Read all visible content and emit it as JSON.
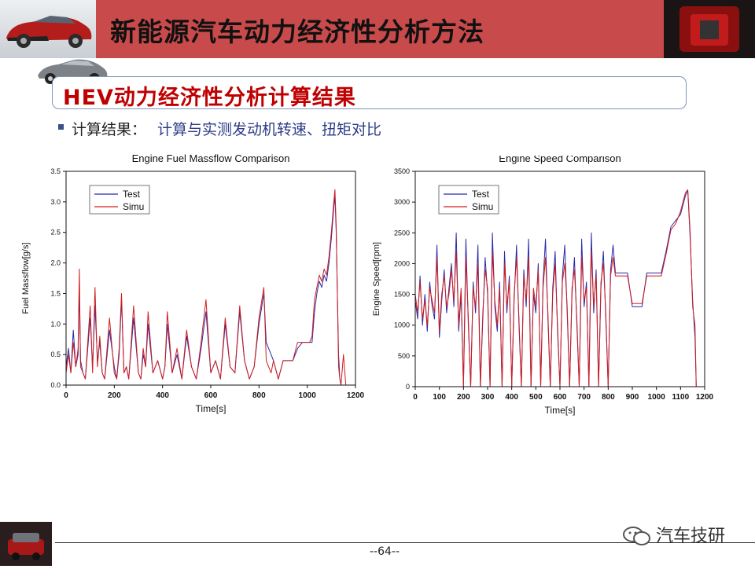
{
  "header": {
    "title": "新能源汽车动力经济性分析方法",
    "bg_color": "#c94a4a"
  },
  "subtitle": "HEV动力经济性分析计算结果",
  "bullet": {
    "label": "计算结果：",
    "text": "计算与实测发动机转速、扭矩对比"
  },
  "footer": {
    "page": "--64--",
    "watermark": "汽车技研"
  },
  "chart_data": [
    {
      "type": "line",
      "title": "Engine Fuel Massflow Comparison",
      "xlabel": "Time[s]",
      "ylabel": "Fuel Massflow[g/s]",
      "xlim": [
        0,
        1200
      ],
      "ylim": [
        0,
        3.5
      ],
      "x_ticks": [
        "0",
        "200",
        "400",
        "600",
        "800",
        "1000",
        "1200"
      ],
      "y_ticks": [
        "0.0",
        "0.5",
        "1.0",
        "1.5",
        "2.0",
        "2.5",
        "3.0",
        "3.5"
      ],
      "legend": "top-left",
      "series": [
        {
          "name": "Test",
          "color": "#2a2aa8",
          "x": [
            0,
            10,
            20,
            30,
            40,
            50,
            55,
            60,
            70,
            80,
            100,
            110,
            120,
            130,
            140,
            150,
            160,
            180,
            200,
            210,
            220,
            230,
            240,
            250,
            260,
            270,
            280,
            300,
            310,
            320,
            330,
            340,
            360,
            380,
            400,
            410,
            420,
            440,
            460,
            480,
            500,
            520,
            540,
            560,
            580,
            600,
            620,
            640,
            660,
            680,
            700,
            720,
            740,
            760,
            780,
            800,
            820,
            830,
            840,
            850,
            860,
            880,
            900,
            910,
            920,
            940,
            960,
            980,
            1000,
            1010,
            1020,
            1030,
            1040,
            1050,
            1060,
            1070,
            1080,
            1090,
            1100,
            1110,
            1115,
            1120,
            1130,
            1135,
            1140,
            1150,
            1160
          ],
          "values": [
            0.3,
            0.6,
            0.2,
            0.9,
            0.3,
            0.5,
            1.6,
            0.4,
            0.2,
            0.1,
            1.1,
            0.3,
            1.3,
            0.4,
            0.7,
            0.2,
            0.1,
            0.9,
            0.3,
            0.1,
            0.5,
            1.4,
            0.2,
            0.3,
            0.1,
            0.6,
            1.1,
            0.2,
            0.1,
            0.5,
            0.3,
            1.0,
            0.2,
            0.4,
            0.1,
            0.3,
            1.0,
            0.2,
            0.5,
            0.1,
            0.8,
            0.3,
            0.1,
            0.6,
            1.2,
            0.2,
            0.4,
            0.1,
            1.0,
            0.3,
            0.2,
            1.2,
            0.4,
            0.1,
            0.3,
            1.0,
            1.5,
            0.7,
            0.6,
            0.5,
            0.4,
            0.1,
            0.4,
            0.4,
            0.4,
            0.4,
            0.6,
            0.7,
            0.7,
            0.7,
            0.7,
            1.2,
            1.5,
            1.7,
            1.6,
            1.8,
            1.7,
            2.0,
            2.4,
            2.9,
            3.1,
            2.5,
            0.5,
            0.1,
            0.0,
            0.0,
            0.0
          ]
        },
        {
          "name": "Simu",
          "color": "#d11d1d",
          "x": [
            0,
            10,
            20,
            30,
            40,
            50,
            55,
            60,
            70,
            80,
            100,
            110,
            120,
            130,
            140,
            150,
            160,
            180,
            200,
            210,
            220,
            230,
            240,
            250,
            260,
            270,
            280,
            300,
            310,
            320,
            330,
            340,
            360,
            380,
            400,
            410,
            420,
            440,
            460,
            480,
            500,
            520,
            540,
            560,
            580,
            600,
            620,
            640,
            660,
            680,
            700,
            720,
            740,
            760,
            780,
            800,
            820,
            830,
            840,
            850,
            860,
            880,
            900,
            910,
            920,
            940,
            960,
            980,
            1000,
            1010,
            1020,
            1030,
            1040,
            1050,
            1060,
            1070,
            1080,
            1090,
            1100,
            1110,
            1115,
            1120,
            1130,
            1135,
            1140,
            1150,
            1160
          ],
          "values": [
            0.2,
            0.5,
            0.2,
            0.7,
            0.3,
            0.6,
            1.9,
            0.3,
            0.2,
            0.1,
            1.3,
            0.2,
            1.6,
            0.3,
            0.8,
            0.2,
            0.1,
            1.1,
            0.2,
            0.1,
            0.6,
            1.5,
            0.2,
            0.3,
            0.1,
            0.7,
            1.3,
            0.2,
            0.1,
            0.6,
            0.3,
            1.2,
            0.2,
            0.4,
            0.1,
            0.3,
            1.2,
            0.2,
            0.6,
            0.1,
            0.9,
            0.3,
            0.1,
            0.7,
            1.4,
            0.2,
            0.4,
            0.1,
            1.1,
            0.3,
            0.2,
            1.3,
            0.4,
            0.1,
            0.3,
            1.1,
            1.6,
            0.4,
            0.3,
            0.2,
            0.4,
            0.1,
            0.4,
            0.4,
            0.4,
            0.4,
            0.7,
            0.7,
            0.7,
            0.7,
            0.8,
            1.4,
            1.6,
            1.8,
            1.7,
            1.9,
            1.8,
            2.1,
            2.5,
            3.0,
            3.2,
            2.6,
            0.3,
            0.1,
            0.0,
            0.5,
            0.0
          ]
        }
      ]
    },
    {
      "type": "line",
      "title": "Engine Speed Comparison",
      "xlabel": "Time[s]",
      "ylabel": "Engine Speed[rpm]",
      "xlim": [
        0,
        1200
      ],
      "ylim": [
        0,
        3500
      ],
      "x_ticks": [
        "0",
        "100",
        "200",
        "300",
        "400",
        "500",
        "600",
        "700",
        "800",
        "900",
        "1000",
        "1100",
        "1200"
      ],
      "y_ticks": [
        "0",
        "500",
        "1000",
        "1500",
        "2000",
        "2500",
        "3000",
        "3500"
      ],
      "legend": "top-left",
      "series": [
        {
          "name": "Test",
          "color": "#2a2aa8",
          "x": [
            0,
            10,
            20,
            30,
            40,
            50,
            60,
            70,
            80,
            90,
            100,
            110,
            120,
            130,
            140,
            150,
            160,
            170,
            180,
            190,
            200,
            210,
            220,
            230,
            240,
            250,
            260,
            270,
            280,
            290,
            300,
            310,
            320,
            330,
            340,
            350,
            360,
            370,
            380,
            390,
            400,
            410,
            420,
            430,
            440,
            450,
            460,
            470,
            480,
            490,
            500,
            510,
            520,
            530,
            540,
            550,
            560,
            570,
            580,
            590,
            600,
            610,
            620,
            630,
            640,
            650,
            660,
            670,
            680,
            690,
            700,
            710,
            720,
            730,
            740,
            750,
            760,
            770,
            780,
            790,
            800,
            810,
            820,
            830,
            860,
            880,
            900,
            920,
            940,
            960,
            980,
            1000,
            1020,
            1040,
            1060,
            1080,
            1100,
            1120,
            1130,
            1140,
            1150,
            1160,
            1165
          ],
          "values": [
            1400,
            1100,
            1800,
            1000,
            1500,
            900,
            1700,
            1300,
            1100,
            2300,
            800,
            1400,
            1900,
            1200,
            1600,
            2000,
            1300,
            2500,
            900,
            1500,
            0,
            2400,
            1000,
            0,
            1700,
            1200,
            2300,
            0,
            1100,
            2100,
            1500,
            0,
            2500,
            1300,
            900,
            1700,
            0,
            2200,
            1200,
            1800,
            0,
            1400,
            2300,
            1000,
            0,
            1900,
            1300,
            2400,
            0,
            1500,
            1200,
            2000,
            0,
            1700,
            2400,
            1100,
            0,
            1600,
            2200,
            900,
            0,
            1800,
            2300,
            1200,
            0,
            1500,
            2100,
            1000,
            0,
            2400,
            1300,
            1700,
            0,
            2500,
            1200,
            1900,
            0,
            1600,
            2200,
            1100,
            0,
            1900,
            2300,
            1850,
            1850,
            1850,
            1300,
            1300,
            1300,
            1850,
            1850,
            1850,
            1850,
            2200,
            2600,
            2700,
            2800,
            3100,
            3200,
            2400,
            1400,
            800,
            0
          ]
        },
        {
          "name": "Simu",
          "color": "#d11d1d",
          "x": [
            0,
            10,
            20,
            30,
            40,
            50,
            60,
            70,
            80,
            90,
            100,
            110,
            120,
            130,
            140,
            150,
            160,
            170,
            180,
            190,
            200,
            210,
            220,
            230,
            240,
            250,
            260,
            270,
            280,
            290,
            300,
            310,
            320,
            330,
            340,
            350,
            360,
            370,
            380,
            390,
            400,
            410,
            420,
            430,
            440,
            450,
            460,
            470,
            480,
            490,
            500,
            510,
            520,
            530,
            540,
            550,
            560,
            570,
            580,
            590,
            600,
            610,
            620,
            630,
            640,
            650,
            660,
            670,
            680,
            690,
            700,
            710,
            720,
            730,
            740,
            750,
            760,
            770,
            780,
            790,
            800,
            810,
            820,
            830,
            860,
            880,
            900,
            920,
            940,
            960,
            980,
            1000,
            1020,
            1040,
            1060,
            1080,
            1100,
            1120,
            1130,
            1140,
            1150,
            1160,
            1165
          ],
          "values": [
            1500,
            1200,
            1700,
            1100,
            1400,
            1000,
            1600,
            1400,
            1200,
            2100,
            900,
            1500,
            1800,
            1300,
            1500,
            1900,
            1400,
            2200,
            1000,
            1600,
            0,
            2100,
            1100,
            0,
            1600,
            1300,
            2000,
            0,
            1200,
            1900,
            1600,
            0,
            2200,
            1400,
            1000,
            1600,
            0,
            2000,
            1300,
            1700,
            0,
            1500,
            2100,
            1100,
            0,
            1800,
            1400,
            2100,
            0,
            1600,
            1300,
            1900,
            0,
            1600,
            2100,
            1200,
            0,
            1500,
            2000,
            1000,
            0,
            1700,
            2000,
            1300,
            0,
            1600,
            1900,
            1100,
            0,
            2100,
            1400,
            1600,
            0,
            2200,
            1300,
            1800,
            0,
            1700,
            2000,
            1200,
            0,
            1800,
            2100,
            1800,
            1800,
            1800,
            1350,
            1350,
            1350,
            1800,
            1800,
            1800,
            1800,
            2150,
            2550,
            2650,
            2850,
            3150,
            3200,
            2500,
            1300,
            1000,
            0
          ]
        }
      ]
    }
  ]
}
